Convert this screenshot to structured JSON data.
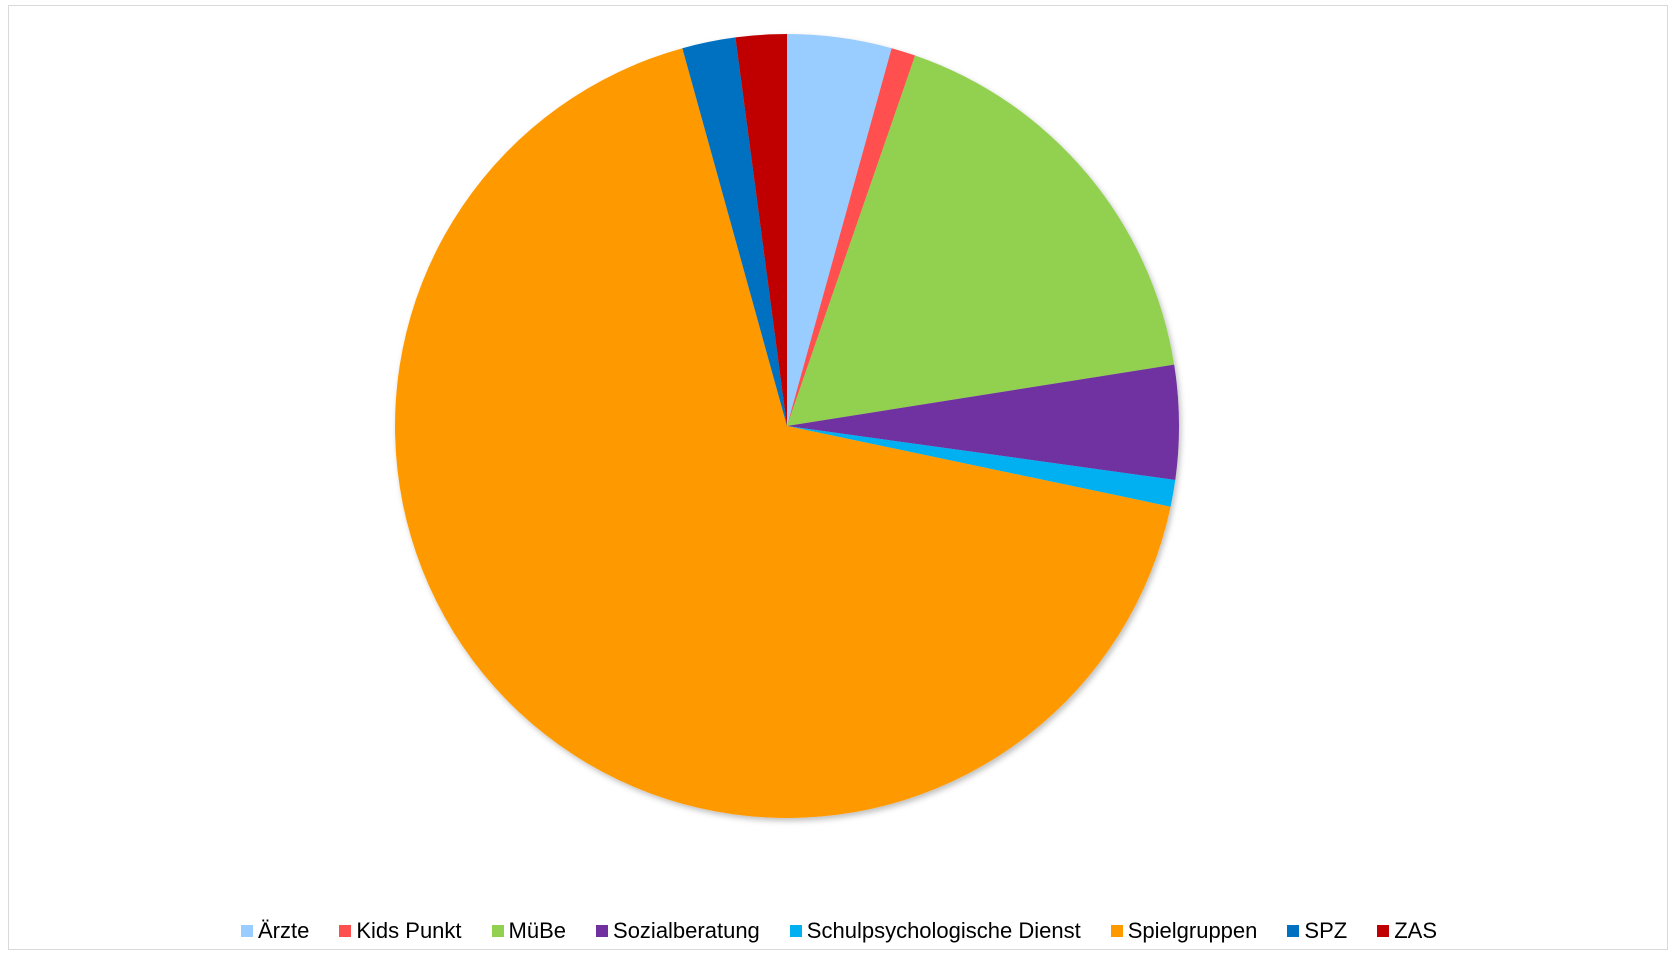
{
  "chart_data": {
    "type": "pie",
    "title": "",
    "start_angle": "12 o'clock, clockwise",
    "legend_position": "bottom",
    "slices": [
      {
        "label": "Ärzte",
        "value": 4.3,
        "color": "#99ccff"
      },
      {
        "label": "Kids Punkt",
        "value": 1.0,
        "color": "#ff5050"
      },
      {
        "label": "MüBe",
        "value": 17.2,
        "color": "#92d050"
      },
      {
        "label": "Sozialberatung",
        "value": 4.7,
        "color": "#7030a0"
      },
      {
        "label": "Schulpsychologische Dienst",
        "value": 1.1,
        "color": "#00b0f0"
      },
      {
        "label": "Spielgruppen",
        "value": 67.4,
        "color": "#ff9900"
      },
      {
        "label": "SPZ",
        "value": 2.2,
        "color": "#0070c0"
      },
      {
        "label": "ZAS",
        "value": 2.1,
        "color": "#c00000"
      }
    ]
  }
}
